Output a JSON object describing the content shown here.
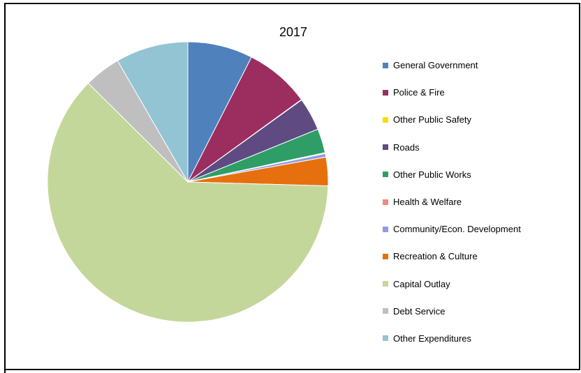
{
  "chart_data": {
    "type": "pie",
    "title": "2017",
    "legend_position": "right",
    "slices": [
      {
        "label": "General Government",
        "value": 7.5,
        "color": "#4F81BD"
      },
      {
        "label": "Police & Fire",
        "value": 7.5,
        "color": "#9B2D5F"
      },
      {
        "label": "Other Public Safety",
        "value": 0.05,
        "color": "#F5E000"
      },
      {
        "label": "Roads",
        "value": 3.8,
        "color": "#5F4B82"
      },
      {
        "label": "Other Public Works",
        "value": 2.8,
        "color": "#2E9E66"
      },
      {
        "label": "Health & Welfare",
        "value": 0.1,
        "color": "#F28880"
      },
      {
        "label": "Community/Econ. Development",
        "value": 0.4,
        "color": "#8F9BE8"
      },
      {
        "label": "Recreation & Culture",
        "value": 3.3,
        "color": "#E7700E"
      },
      {
        "label": "Capital Outlay",
        "value": 62.0,
        "color": "#C4D79B"
      },
      {
        "label": "Debt Service",
        "value": 4.2,
        "color": "#BFBFBF"
      },
      {
        "label": "Other Expenditures",
        "value": 8.35,
        "color": "#92C4D4"
      }
    ]
  }
}
